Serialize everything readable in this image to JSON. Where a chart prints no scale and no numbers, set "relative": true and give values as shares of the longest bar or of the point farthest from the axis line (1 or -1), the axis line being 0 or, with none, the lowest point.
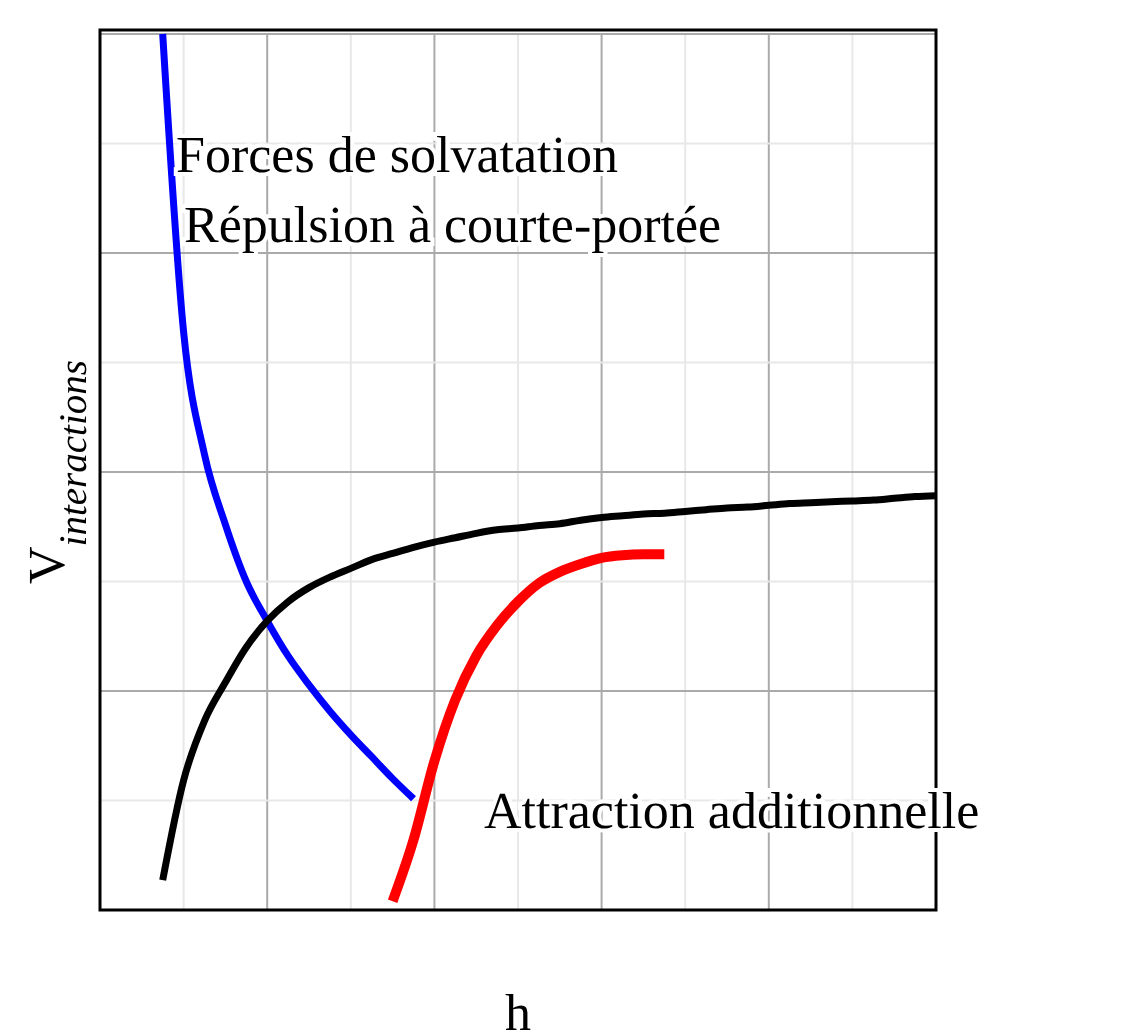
{
  "chart_data": {
    "type": "line",
    "relative": true,
    "xlabel": "h",
    "ylabel": "V$_{interactions}$",
    "categories": [
      null,
      null,
      null,
      null,
      null,
      null,
      null,
      null,
      null,
      null,
      null,
      null,
      null,
      null,
      null,
      null,
      null,
      null,
      null,
      null,
      null,
      null,
      null,
      null,
      null,
      null,
      null,
      null,
      null,
      null,
      null,
      null,
      null,
      null,
      null,
      null,
      null,
      null,
      null,
      null,
      null
    ],
    "series": [
      {
        "color": "#0000ff",
        "values": [
          null,
          null,
          null,
          1.0,
          0.66,
          0.52,
          0.44,
          0.375,
          0.33,
          0.29,
          0.257,
          0.227,
          0.2,
          0.175,
          0.15,
          0.127,
          null,
          null,
          null,
          null,
          null,
          null,
          null,
          null,
          null,
          null,
          null,
          null,
          null,
          null,
          null,
          null,
          null,
          null,
          null,
          null,
          null,
          null,
          null,
          null,
          null
        ]
      },
      {
        "color": "#000000",
        "values": [
          null,
          null,
          null,
          0.034,
          0.148,
          0.216,
          0.26,
          0.3,
          0.33,
          0.352,
          0.368,
          0.38,
          0.39,
          0.4,
          0.407,
          0.414,
          0.42,
          0.425,
          0.43,
          0.434,
          0.436,
          0.439,
          0.441,
          0.445,
          0.448,
          0.45,
          0.452,
          0.453,
          0.455,
          0.457,
          0.459,
          0.46,
          0.462,
          0.464,
          0.465,
          0.466,
          0.467,
          0.468,
          0.47,
          0.472,
          0.473
        ]
      },
      {
        "color": "#ff0000",
        "values": [
          null,
          null,
          null,
          null,
          null,
          null,
          null,
          null,
          null,
          null,
          null,
          null,
          null,
          null,
          0.01,
          0.08,
          0.17,
          0.24,
          0.29,
          0.325,
          0.352,
          0.373,
          0.386,
          0.395,
          0.402,
          0.405,
          0.406,
          0.406,
          null,
          null,
          null,
          null,
          null,
          null,
          null,
          null,
          null,
          null,
          null,
          null,
          null
        ]
      }
    ],
    "annotations": [
      "Forces de solvatation",
      "Répulsion à courte-portée",
      "Attraction additionnelle"
    ],
    "grid": true,
    "line_style": "solid",
    "marker": "none"
  }
}
